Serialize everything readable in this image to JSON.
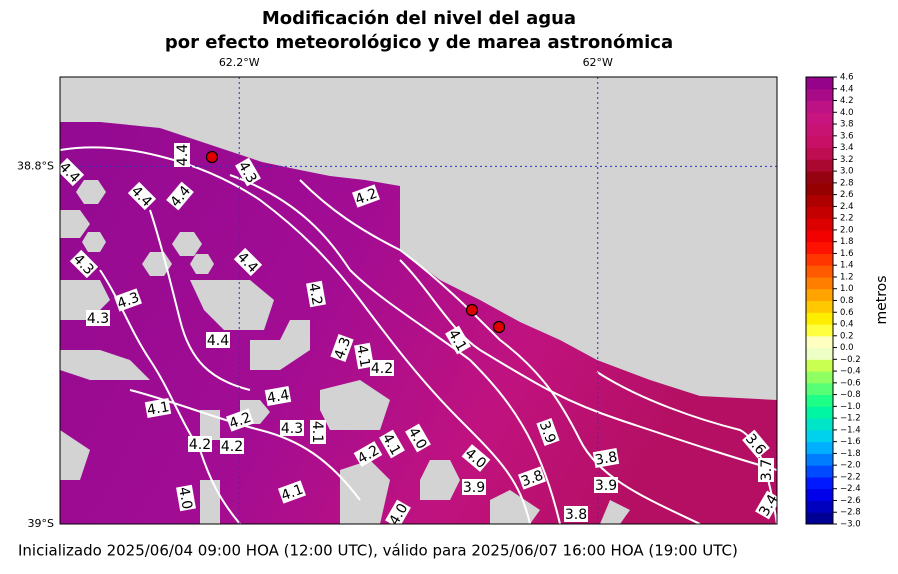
{
  "chart_data": {
    "type": "contour_map",
    "title": "Modificación del nivel del agua",
    "subtitle": "por efecto meteorológico y de marea astronómica",
    "footer": "Inicializado 2025/06/04 09:00 HOA (12:00 UTC), válido para 2025/06/07 16:00 HOA (19:00 UTC)",
    "xlim": [
      -62.3,
      -61.9
    ],
    "ylim": [
      -39,
      -38.75
    ],
    "xticks": [
      {
        "value": -62.2,
        "label": "62.2°W"
      },
      {
        "value": -62,
        "label": "62°W"
      }
    ],
    "yticks": [
      {
        "value": -38.8,
        "label": "38.8°S"
      },
      {
        "value": -39,
        "label": "39°S"
      }
    ],
    "grid": true,
    "colorbar_label": "metros",
    "clim": [
      -3,
      4.6
    ],
    "colormap": [
      [
        "#000080",
        -3
      ],
      [
        "#0000ff",
        -2.4
      ],
      [
        "#00c8ff",
        -1.6
      ],
      [
        "#00ff90",
        -1
      ],
      [
        "#c8ff50",
        -0.3
      ],
      [
        "#ffffff",
        0
      ],
      [
        "#ffff00",
        0.4
      ],
      [
        "#ff9000",
        1
      ],
      [
        "#ff0000",
        1.8
      ],
      [
        "#8b0000",
        2.8
      ],
      [
        "#c81060",
        3.4
      ],
      [
        "#c71585",
        4
      ],
      [
        "#8b008b",
        4.6
      ]
    ],
    "colorbar_ticks": [
      {
        "value": -3,
        "label": "−3.0"
      },
      {
        "value": -2.8,
        "label": "−2.8"
      },
      {
        "value": -2.6,
        "label": "−2.6"
      },
      {
        "value": -2.4,
        "label": "−2.4"
      },
      {
        "value": -2.2,
        "label": "−2.2"
      },
      {
        "value": -2,
        "label": "−2.0"
      },
      {
        "value": -1.8,
        "label": "−1.8"
      },
      {
        "value": -1.6,
        "label": "−1.6"
      },
      {
        "value": -1.4,
        "label": "−1.4"
      },
      {
        "value": -1.2,
        "label": "−1.2"
      },
      {
        "value": -1,
        "label": "−1.0"
      },
      {
        "value": -0.8,
        "label": "−0.8"
      },
      {
        "value": -0.6,
        "label": "−0.6"
      },
      {
        "value": -0.4,
        "label": "−0.4"
      },
      {
        "value": -0.2,
        "label": "−0.2"
      },
      {
        "value": 0,
        "label": "0.0"
      },
      0.2,
      0.4,
      0.6,
      0.8,
      {
        "value": 1,
        "label": "1.0"
      },
      1.2,
      1.4,
      1.6,
      1.8,
      {
        "value": 2,
        "label": "2.0"
      },
      2.2,
      2.4,
      2.6,
      2.8,
      {
        "value": 3,
        "label": "3.0"
      },
      3.2,
      3.4,
      3.6,
      3.8,
      {
        "value": 4,
        "label": "4.0"
      },
      4.2,
      4.4,
      4.6
    ],
    "contour_labels": [
      "4.4",
      "4.3",
      "4.2",
      "4.4",
      "4.4",
      "4.4",
      "4.4",
      "4.3",
      "4.2",
      "4.3",
      "4.3",
      "4.4",
      "4.1",
      "4.3",
      "4.1",
      "4.2",
      "4.4",
      "4.1",
      "4.3",
      "4.1",
      "4.2",
      "3.9",
      "3.8",
      "4.0",
      "3.9",
      "3.8",
      "3.9",
      "4.1",
      "4.0",
      "3.8",
      "3.6",
      "3.7",
      "4.0",
      "3.4",
      "4.2",
      "4.2",
      "4.2",
      "4.1",
      "4.0"
    ]
  }
}
